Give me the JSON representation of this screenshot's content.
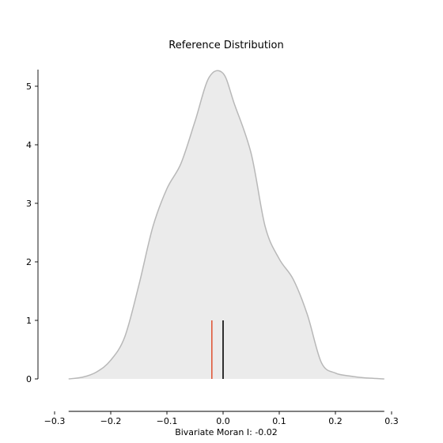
{
  "chart_data": {
    "type": "area",
    "title": "Reference Distribution",
    "xlabel": "Bivariate Moran I: -0.02",
    "ylabel": "",
    "xlim": [
      -0.3,
      0.3
    ],
    "ylim": [
      0,
      5.3
    ],
    "x_ticks": [
      -0.3,
      -0.2,
      -0.1,
      0.0,
      0.1,
      0.2,
      0.3
    ],
    "x_tick_labels": [
      "−0.3",
      "−0.2",
      "−0.1",
      "0.0",
      "0.1",
      "0.2",
      "0.3"
    ],
    "y_ticks": [
      0,
      1,
      2,
      3,
      4,
      5
    ],
    "y_tick_labels": [
      "0",
      "1",
      "2",
      "3",
      "4",
      "5"
    ],
    "grid": false,
    "series": [
      {
        "x": [
          -0.275,
          -0.25,
          -0.225,
          -0.2,
          -0.175,
          -0.15,
          -0.125,
          -0.1,
          -0.075,
          -0.05,
          -0.025,
          0.0,
          0.02,
          0.05,
          0.075,
          0.1,
          0.125,
          0.15,
          0.175,
          0.2,
          0.225,
          0.25,
          0.287
        ],
        "y": [
          0.0,
          0.03,
          0.12,
          0.32,
          0.72,
          1.6,
          2.6,
          3.25,
          3.68,
          4.4,
          5.15,
          5.22,
          4.7,
          3.85,
          2.6,
          2.05,
          1.7,
          1.1,
          0.28,
          0.1,
          0.05,
          0.02,
          0.0
        ],
        "fill": "#ebebeb",
        "line": "#b8b8b8"
      }
    ],
    "reference_lines": [
      {
        "x": -0.02,
        "y_top": 1,
        "color": "#e05a3c"
      },
      {
        "x": 0.0,
        "y_top": 1,
        "color": "#000000"
      }
    ]
  }
}
